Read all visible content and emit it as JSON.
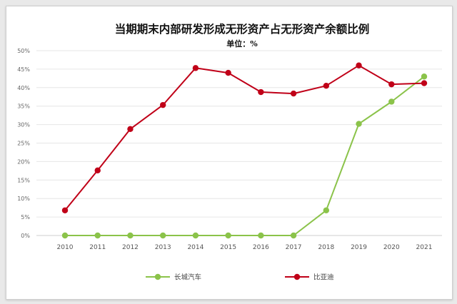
{
  "chart_data": {
    "type": "line",
    "title": "当期期末内部研发形成无形资产占无形资产余额比例",
    "subtitle": "单位：%",
    "x": [
      "2010",
      "2011",
      "2012",
      "2013",
      "2014",
      "2015",
      "2016",
      "2017",
      "2018",
      "2019",
      "2020",
      "2021"
    ],
    "ylim": [
      0,
      50
    ],
    "yticks": [
      "0%",
      "5%",
      "10%",
      "15%",
      "20%",
      "25%",
      "30%",
      "35%",
      "40%",
      "45%",
      "50%"
    ],
    "grid": true,
    "legend": "bottom",
    "series": [
      {
        "name": "长城汽车",
        "color": "#8bc34a",
        "values": [
          0,
          0,
          0,
          0,
          0,
          0,
          0,
          0,
          6.8,
          30.2,
          36.2,
          43.0
        ]
      },
      {
        "name": "比亚迪",
        "color": "#c00018",
        "values": [
          6.8,
          17.6,
          28.8,
          35.3,
          45.3,
          44.0,
          38.8,
          38.4,
          40.5,
          46.0,
          40.9,
          41.2
        ]
      }
    ]
  }
}
